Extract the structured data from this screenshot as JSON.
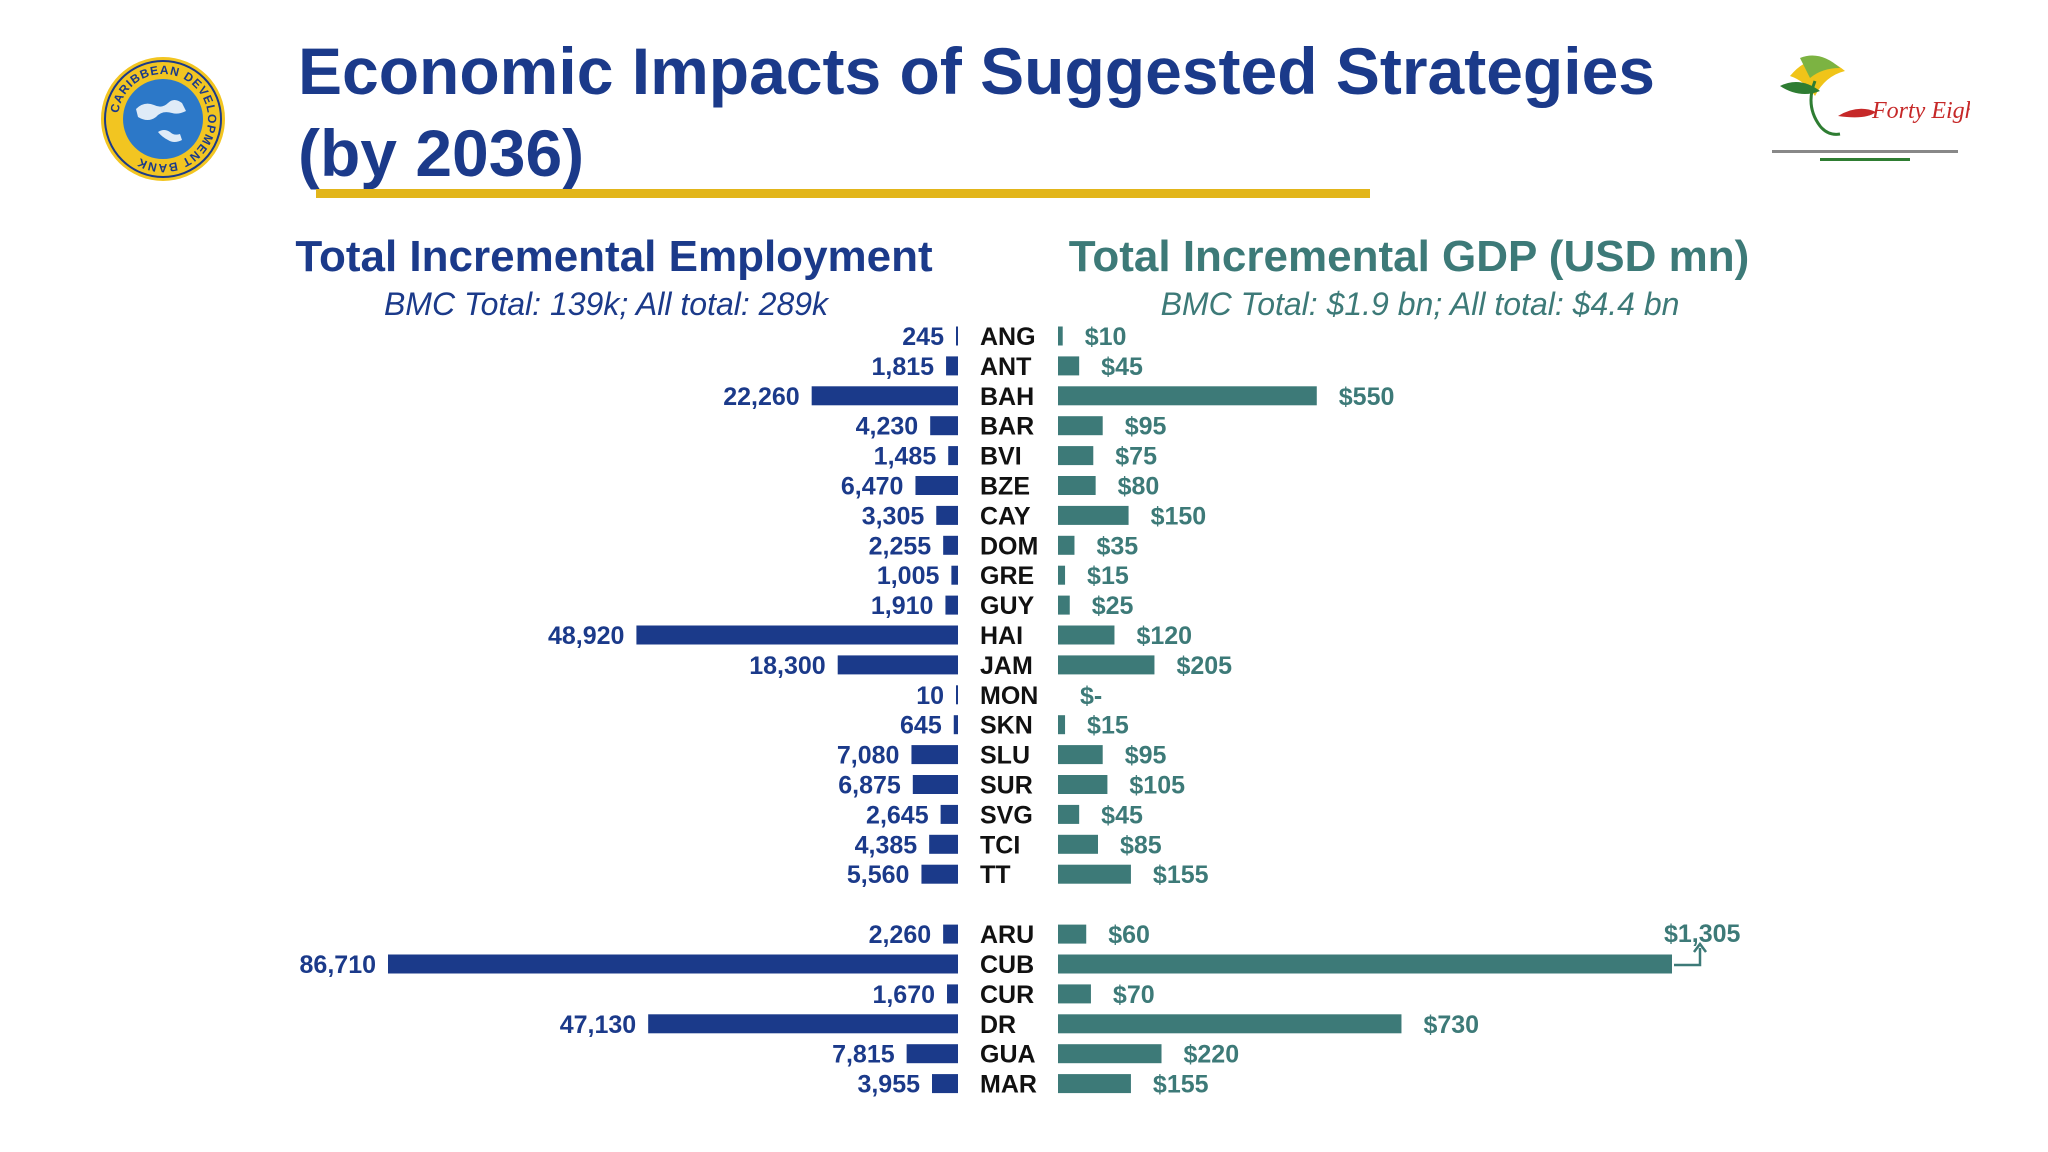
{
  "slide": {
    "title": "Economic Impacts of Suggested Strategies (by 2036)",
    "colors": {
      "title": "#1b3a8a",
      "accent_rule": "#e2b51a",
      "employment": "#1b3a8a",
      "gdp": "#3d7a78"
    },
    "logos": {
      "left": "caribbean-development-bank-logo",
      "right": "forty-eighth-annual-meeting-logo"
    },
    "logo_left_text": "CARIBBEAN DEVELOPMENT BANK",
    "logo_right_text": "Forty Eighth"
  },
  "chart_data": {
    "type": "bar",
    "orientation": "horizontal-butterfly",
    "categories": [
      "ANG",
      "ANT",
      "BAH",
      "BAR",
      "BVI",
      "BZE",
      "CAY",
      "DOM",
      "GRE",
      "GUY",
      "HAI",
      "JAM",
      "MON",
      "SKN",
      "SLU",
      "SUR",
      "SVG",
      "TCI",
      "TT",
      "ARU",
      "CUB",
      "CUR",
      "DR",
      "GUA",
      "MAR"
    ],
    "group_break_after": "TT",
    "series": [
      {
        "name": "Total Incremental Employment",
        "subtitle": "BMC Total: 139k; All total: 289k",
        "direction": "left",
        "values": [
          245,
          1815,
          22260,
          4230,
          1485,
          6470,
          3305,
          2255,
          1005,
          1910,
          48920,
          18300,
          10,
          645,
          7080,
          6875,
          2645,
          4385,
          5560,
          2260,
          86710,
          1670,
          47130,
          7815,
          3955
        ],
        "labels": [
          "245",
          "1,815",
          "22,260",
          "4,230",
          "1,485",
          "6,470",
          "3,305",
          "2,255",
          "1,005",
          "1,910",
          "48,920",
          "18,300",
          "10",
          "645",
          "7,080",
          "6,875",
          "2,645",
          "4,385",
          "5,560",
          "2,260",
          "86,710",
          "1,670",
          "47,130",
          "7,815",
          "3,955"
        ]
      },
      {
        "name": "Total Incremental GDP (USD mn)",
        "subtitle": "BMC Total: $1.9 bn; All total: $4.4 bn",
        "direction": "right",
        "values": [
          10,
          45,
          550,
          95,
          75,
          80,
          150,
          35,
          15,
          25,
          120,
          205,
          0,
          15,
          95,
          105,
          45,
          85,
          155,
          60,
          1305,
          70,
          730,
          220,
          155
        ],
        "labels": [
          "$10",
          "$45",
          "$550",
          "$95",
          "$75",
          "$80",
          "$150",
          "$35",
          "$15",
          "$25",
          "$120",
          "$205",
          "$-",
          "$15",
          "$95",
          "$105",
          "$45",
          "$85",
          "$155",
          "$60",
          "$1,305",
          "$70",
          "$730",
          "$220",
          "$155"
        ]
      }
    ],
    "annotations": [
      {
        "category": "CUB",
        "series": "Total Incremental GDP (USD mn)",
        "label": "$1,305",
        "style": "callout-above-right"
      }
    ],
    "xlabel": "",
    "ylabel": "",
    "grid": false,
    "legend": "none"
  }
}
